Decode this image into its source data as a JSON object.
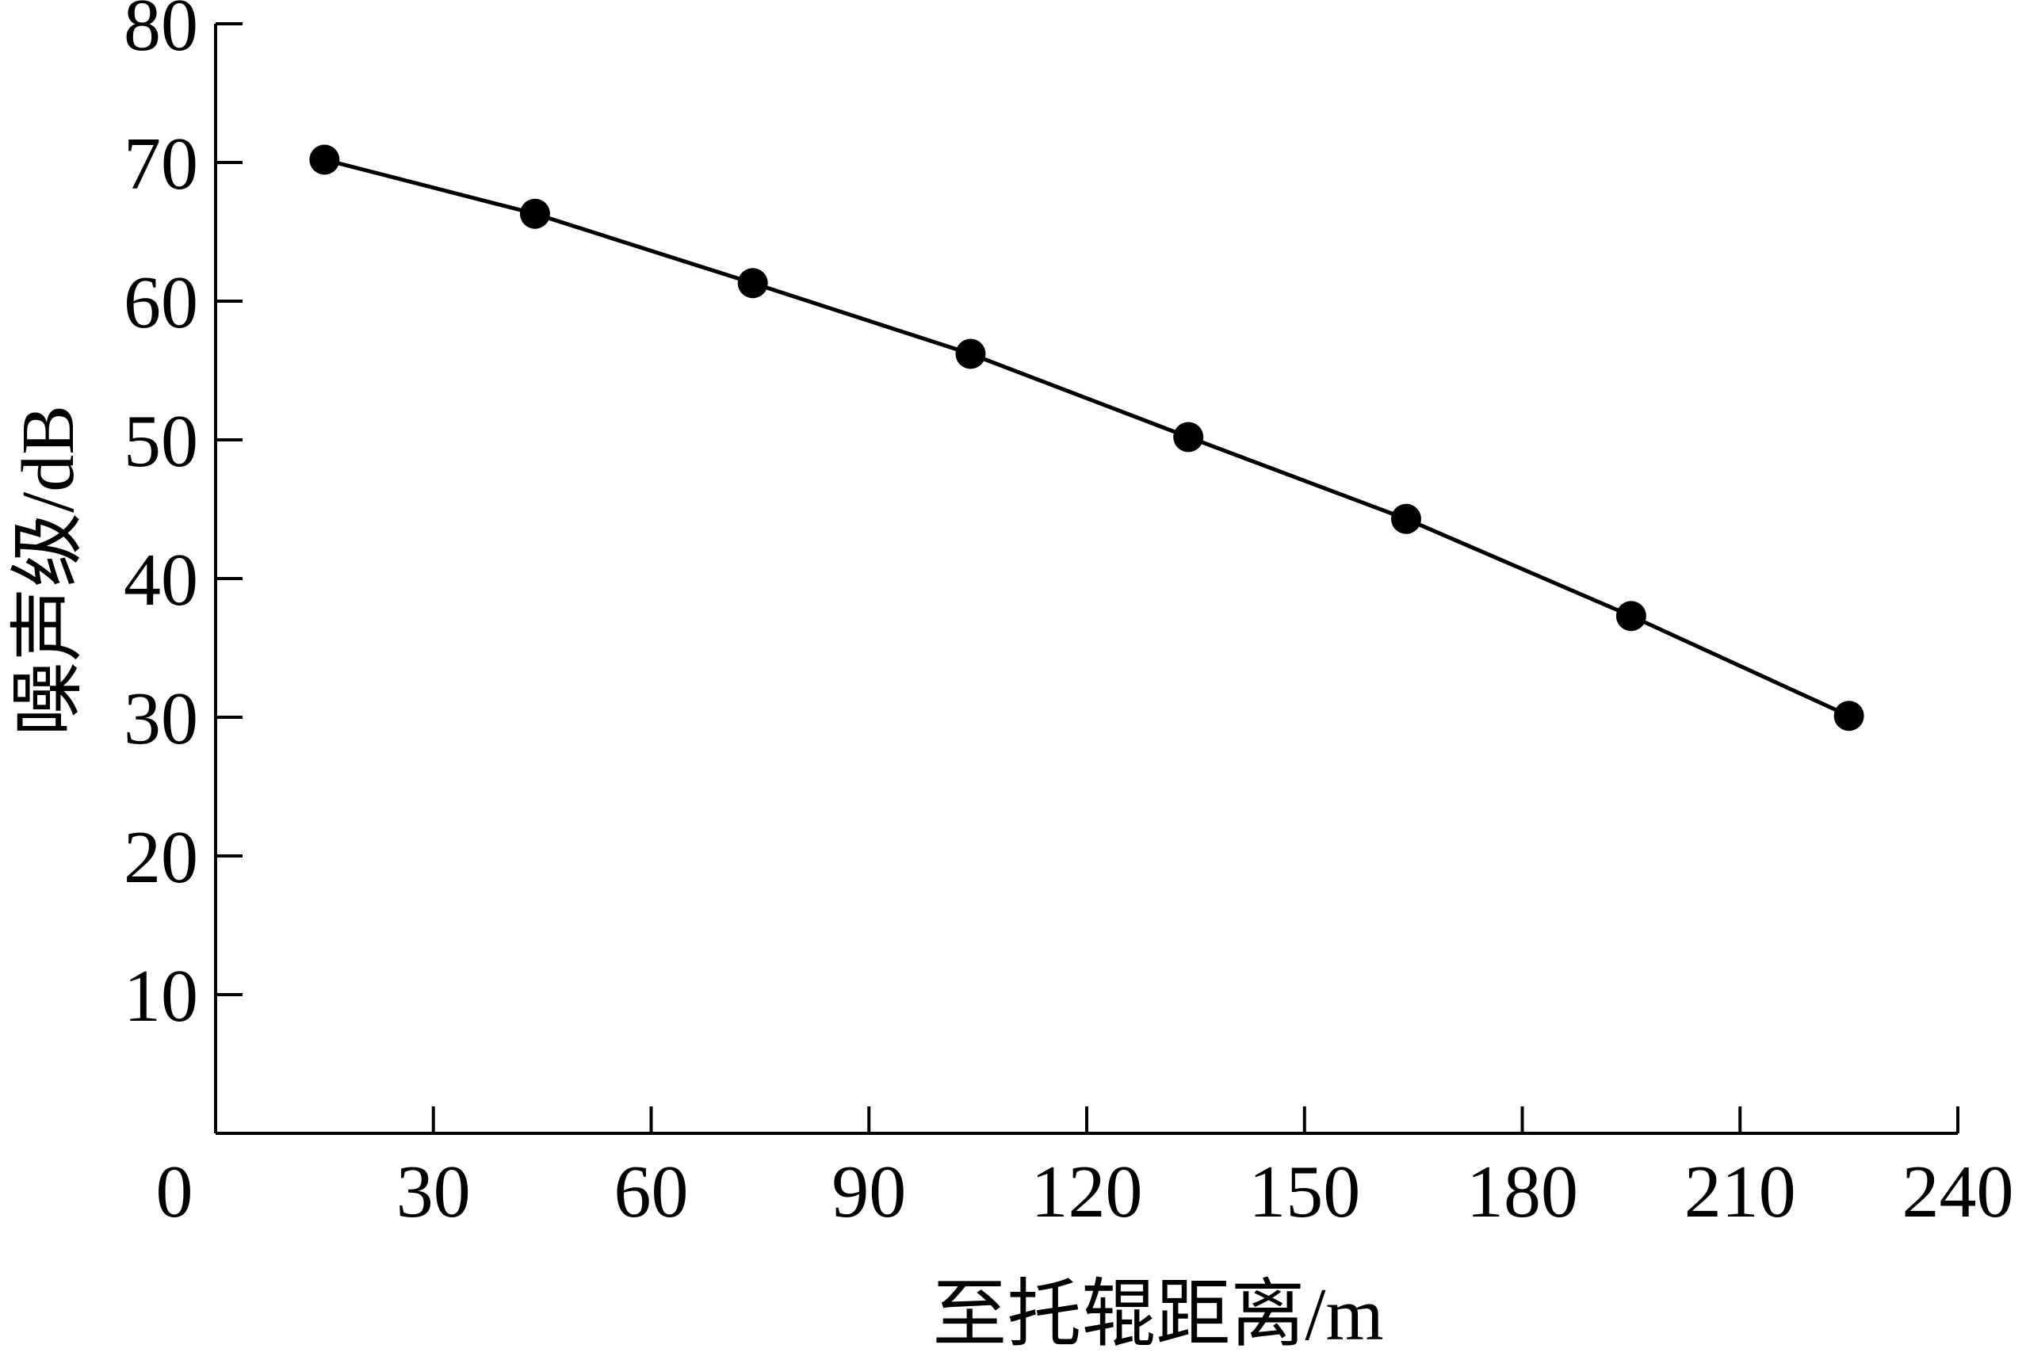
{
  "chart_data": {
    "type": "line",
    "title": "",
    "xlabel": "至托辊距离/m",
    "ylabel": "噪声级/dB",
    "xlim": [
      0,
      240
    ],
    "ylim": [
      0,
      80
    ],
    "x_ticks": [
      0,
      30,
      60,
      90,
      120,
      150,
      180,
      210,
      240
    ],
    "y_ticks": [
      10,
      20,
      30,
      40,
      50,
      60,
      70,
      80
    ],
    "grid": false,
    "legend": "none",
    "series": [
      {
        "x": [
          15,
          44,
          74,
          104,
          134,
          164,
          195,
          225
        ],
        "y": [
          70.2,
          66.3,
          61.3,
          56.2,
          50.2,
          44.3,
          37.3,
          30.1
        ]
      }
    ]
  }
}
